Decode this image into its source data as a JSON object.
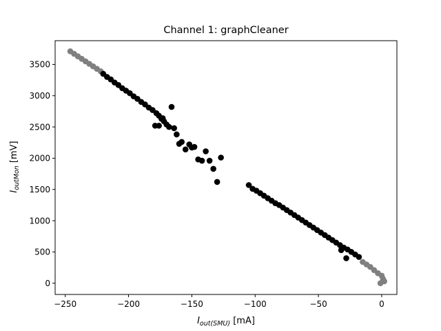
{
  "chart_data": {
    "type": "scatter",
    "title": "Channel 1: graphCleaner",
    "xlabel": {
      "main": "I",
      "sub": "out(SMU)",
      "unit": " [mA]"
    },
    "ylabel": {
      "main": "I",
      "sub": "outMon",
      "unit": " [mV]"
    },
    "xlim": [
      -258,
      12
    ],
    "ylim": [
      -180,
      3880
    ],
    "xticks": [
      -250,
      -200,
      -150,
      -100,
      -50,
      0
    ],
    "xtick_labels": [
      "−250",
      "−200",
      "−150",
      "−100",
      "−50",
      "0"
    ],
    "yticks": [
      0,
      500,
      1000,
      1500,
      2000,
      2500,
      3000,
      3500
    ],
    "ytick_labels": [
      "0",
      "500",
      "1000",
      "1500",
      "2000",
      "2500",
      "3000",
      "3500"
    ],
    "grid": false,
    "series": [
      {
        "color": "#808080",
        "points": [
          [
            -246,
            3710
          ],
          [
            -243,
            3670
          ],
          [
            -240,
            3630
          ],
          [
            -237,
            3590
          ],
          [
            -234,
            3550
          ],
          [
            -231,
            3510
          ],
          [
            -228,
            3470
          ],
          [
            -225,
            3430
          ],
          [
            -222,
            3390
          ],
          [
            -15,
            340
          ],
          [
            -12,
            300
          ],
          [
            -9,
            260
          ],
          [
            -6,
            210
          ],
          [
            -3,
            160
          ],
          [
            0,
            120
          ],
          [
            1,
            70
          ],
          [
            2,
            30
          ],
          [
            -1,
            0
          ]
        ]
      },
      {
        "color": "#000000",
        "points": [
          [
            -220,
            3350
          ],
          [
            -217,
            3300
          ],
          [
            -214,
            3260
          ],
          [
            -211,
            3210
          ],
          [
            -208,
            3170
          ],
          [
            -205,
            3120
          ],
          [
            -202,
            3080
          ],
          [
            -199,
            3040
          ],
          [
            -196,
            2990
          ],
          [
            -193,
            2950
          ],
          [
            -190,
            2900
          ],
          [
            -187,
            2860
          ],
          [
            -184,
            2810
          ],
          [
            -181,
            2770
          ],
          [
            -178,
            2720
          ],
          [
            -176,
            2680
          ],
          [
            -174,
            2630
          ],
          [
            -172,
            2590
          ],
          [
            -170,
            2540
          ],
          [
            -168,
            2500
          ],
          [
            -166,
            2820
          ],
          [
            -164,
            2480
          ],
          [
            -162,
            2380
          ],
          [
            -160,
            2230
          ],
          [
            -158,
            2260
          ],
          [
            -155,
            2140
          ],
          [
            -152,
            2220
          ],
          [
            -150,
            2170
          ],
          [
            -148,
            2180
          ],
          [
            -145,
            1980
          ],
          [
            -142,
            1960
          ],
          [
            -139,
            2110
          ],
          [
            -136,
            1960
          ],
          [
            -133,
            1830
          ],
          [
            -130,
            1620
          ],
          [
            -127,
            2010
          ],
          [
            -179,
            2520
          ],
          [
            -176,
            2520
          ],
          [
            -173,
            2640
          ],
          [
            -105,
            1570
          ],
          [
            -102,
            1510
          ],
          [
            -99,
            1480
          ],
          [
            -96,
            1440
          ],
          [
            -93,
            1400
          ],
          [
            -90,
            1360
          ],
          [
            -87,
            1320
          ],
          [
            -84,
            1280
          ],
          [
            -81,
            1250
          ],
          [
            -78,
            1210
          ],
          [
            -75,
            1170
          ],
          [
            -72,
            1130
          ],
          [
            -69,
            1090
          ],
          [
            -66,
            1050
          ],
          [
            -63,
            1010
          ],
          [
            -60,
            970
          ],
          [
            -57,
            930
          ],
          [
            -54,
            890
          ],
          [
            -51,
            850
          ],
          [
            -48,
            810
          ],
          [
            -45,
            770
          ],
          [
            -42,
            730
          ],
          [
            -39,
            690
          ],
          [
            -36,
            650
          ],
          [
            -33,
            610
          ],
          [
            -30,
            570
          ],
          [
            -27,
            540
          ],
          [
            -24,
            500
          ],
          [
            -21,
            460
          ],
          [
            -18,
            420
          ],
          [
            -32,
            530
          ],
          [
            -28,
            400
          ]
        ]
      }
    ]
  }
}
